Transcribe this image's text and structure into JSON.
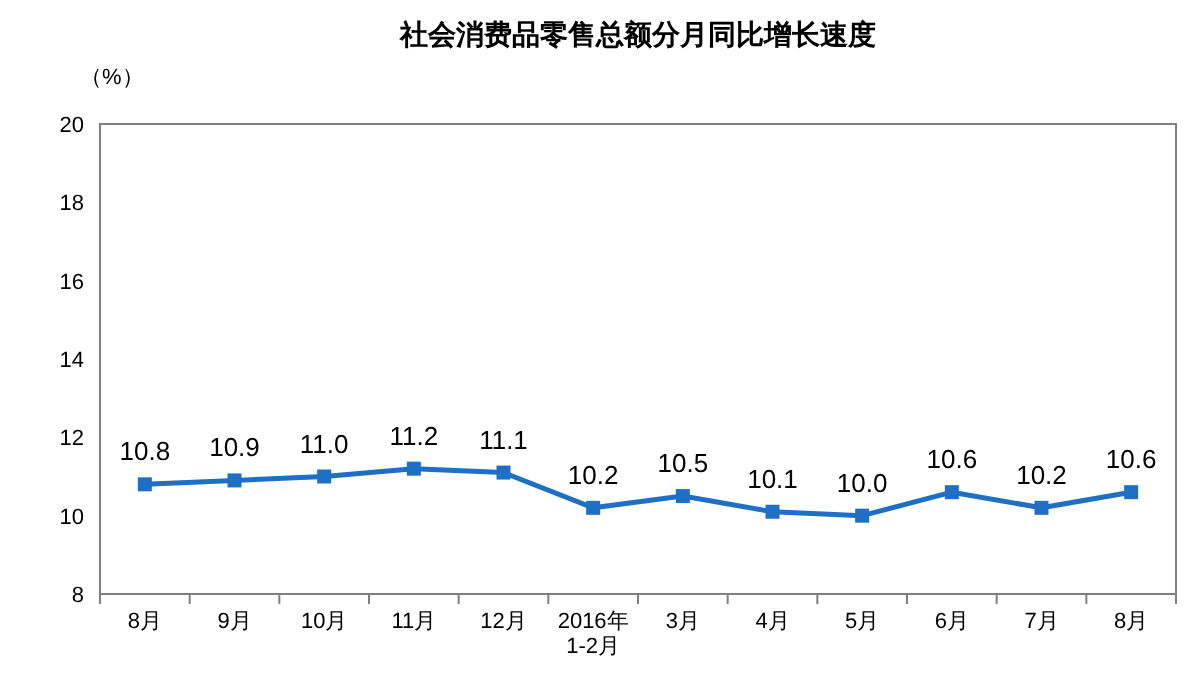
{
  "chart_data": {
    "type": "line",
    "title": "社会消费品零售总额分月同比增长速度",
    "ylabel": "（%）",
    "categories": [
      "8月",
      "9月",
      "10月",
      "11月",
      "12月",
      "2016年\n1-2月",
      "3月",
      "4月",
      "5月",
      "6月",
      "7月",
      "8月"
    ],
    "series": [
      {
        "color": "#1f6fc5",
        "values": [
          10.8,
          10.9,
          11.0,
          11.2,
          11.1,
          10.2,
          10.5,
          10.1,
          10.0,
          10.6,
          10.2,
          10.6
        ],
        "value_labels": [
          "10.8",
          "10.9",
          "11.0",
          "11.2",
          "11.1",
          "10.2",
          "10.5",
          "10.1",
          "10.0",
          "10.6",
          "10.2",
          "10.6"
        ]
      }
    ],
    "ylim": [
      8,
      20
    ],
    "yticks": [
      8,
      10,
      12,
      14,
      16,
      18,
      20
    ],
    "marker": "square"
  }
}
